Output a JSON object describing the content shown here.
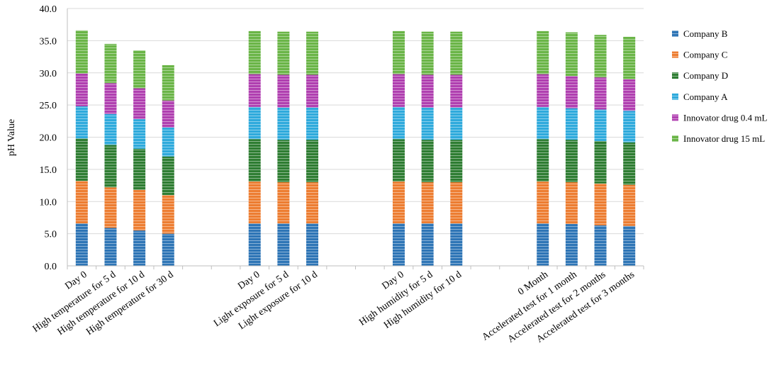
{
  "chart_data": {
    "type": "bar",
    "stacked": true,
    "title": "",
    "xlabel": "",
    "ylabel": "pH Value",
    "ylim": [
      0,
      40
    ],
    "yticks": [
      "0.0",
      "5.0",
      "10.0",
      "15.0",
      "20.0",
      "25.0",
      "30.0",
      "35.0",
      "40.0"
    ],
    "grid": true,
    "legend_position": "right",
    "categories": [
      "Day 0",
      "High temperature for 5 d",
      "High temperature for 10 d",
      "High temperature for 30 d",
      "",
      "",
      "Day 0",
      "Light exposure for 5 d",
      "Light exposure for 10 d",
      "",
      "",
      "Day 0",
      "High humidity for 5 d",
      "High humidity for 10 d",
      "",
      "",
      "0 Month",
      "Accelerated test for 1 month",
      "Accelerated test for 2 months",
      "Accelerated test for 3 months"
    ],
    "series": [
      {
        "name": "Company B",
        "color": "#2e75b6",
        "values": [
          6.6,
          5.9,
          5.5,
          5.0,
          null,
          null,
          6.6,
          6.6,
          6.6,
          null,
          null,
          6.6,
          6.6,
          6.6,
          null,
          null,
          6.6,
          6.5,
          6.3,
          6.2
        ]
      },
      {
        "name": "Company C",
        "color": "#ed7d31",
        "values": [
          6.6,
          6.3,
          6.3,
          6.0,
          null,
          null,
          6.5,
          6.4,
          6.4,
          null,
          null,
          6.5,
          6.4,
          6.4,
          null,
          null,
          6.5,
          6.5,
          6.5,
          6.4
        ]
      },
      {
        "name": "Company D",
        "color": "#2e7d32",
        "values": [
          6.6,
          6.6,
          6.4,
          6.0,
          null,
          null,
          6.6,
          6.6,
          6.6,
          null,
          null,
          6.6,
          6.6,
          6.6,
          null,
          null,
          6.6,
          6.6,
          6.6,
          6.6
        ]
      },
      {
        "name": "Company A",
        "color": "#2eaadc",
        "values": [
          5.0,
          4.8,
          4.6,
          4.5,
          null,
          null,
          5.0,
          5.0,
          5.0,
          null,
          null,
          5.0,
          5.0,
          5.0,
          null,
          null,
          5.0,
          4.9,
          4.9,
          4.9
        ]
      },
      {
        "name": "Innovator drug 0.4 mL",
        "color": "#b03fb0",
        "values": [
          5.1,
          4.8,
          4.8,
          4.2,
          null,
          null,
          5.1,
          5.1,
          5.1,
          null,
          null,
          5.1,
          5.1,
          5.1,
          null,
          null,
          5.1,
          5.0,
          5.0,
          4.9
        ]
      },
      {
        "name": "Innovator drug 15 mL",
        "color": "#6ab547",
        "values": [
          6.7,
          6.1,
          5.9,
          5.5,
          null,
          null,
          6.7,
          6.7,
          6.7,
          null,
          null,
          6.7,
          6.7,
          6.7,
          null,
          null,
          6.7,
          6.8,
          6.6,
          6.6
        ]
      }
    ]
  }
}
